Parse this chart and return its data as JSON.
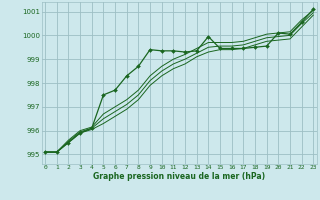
{
  "title": "Graphe pression niveau de la mer (hPa)",
  "background_color": "#cde8ec",
  "grid_color": "#9dbfc4",
  "line_color": "#1a6620",
  "x_ticks": [
    0,
    1,
    2,
    3,
    4,
    5,
    6,
    7,
    8,
    9,
    10,
    11,
    12,
    13,
    14,
    15,
    16,
    17,
    18,
    19,
    20,
    21,
    22,
    23
  ],
  "y_ticks": [
    995,
    996,
    997,
    998,
    999,
    1000,
    1001
  ],
  "ylim": [
    994.6,
    1001.4
  ],
  "xlim": [
    -0.3,
    23.3
  ],
  "series1": [
    995.1,
    995.1,
    995.5,
    995.9,
    996.1,
    997.5,
    997.7,
    998.3,
    998.7,
    999.4,
    999.35,
    999.35,
    999.3,
    999.35,
    999.95,
    999.45,
    999.45,
    999.45,
    999.5,
    999.55,
    1000.1,
    1000.05,
    1000.55,
    1001.1
  ],
  "series2": [
    995.1,
    995.1,
    995.6,
    996.0,
    996.15,
    996.7,
    997.0,
    997.3,
    997.7,
    998.3,
    998.7,
    999.0,
    999.2,
    999.45,
    999.7,
    999.7,
    999.7,
    999.75,
    999.9,
    1000.05,
    1000.1,
    1000.15,
    1000.65,
    1001.05
  ],
  "series3": [
    995.1,
    995.1,
    995.55,
    995.95,
    996.1,
    996.5,
    996.8,
    997.1,
    997.5,
    998.1,
    998.5,
    998.8,
    999.0,
    999.25,
    999.5,
    999.55,
    999.55,
    999.6,
    999.75,
    999.9,
    999.95,
    1000.0,
    1000.5,
    1000.95
  ],
  "series4": [
    995.1,
    995.1,
    995.5,
    995.9,
    996.05,
    996.3,
    996.6,
    996.9,
    997.3,
    997.9,
    998.3,
    998.6,
    998.8,
    999.1,
    999.3,
    999.4,
    999.4,
    999.45,
    999.6,
    999.75,
    999.8,
    999.85,
    1000.35,
    1000.85
  ]
}
